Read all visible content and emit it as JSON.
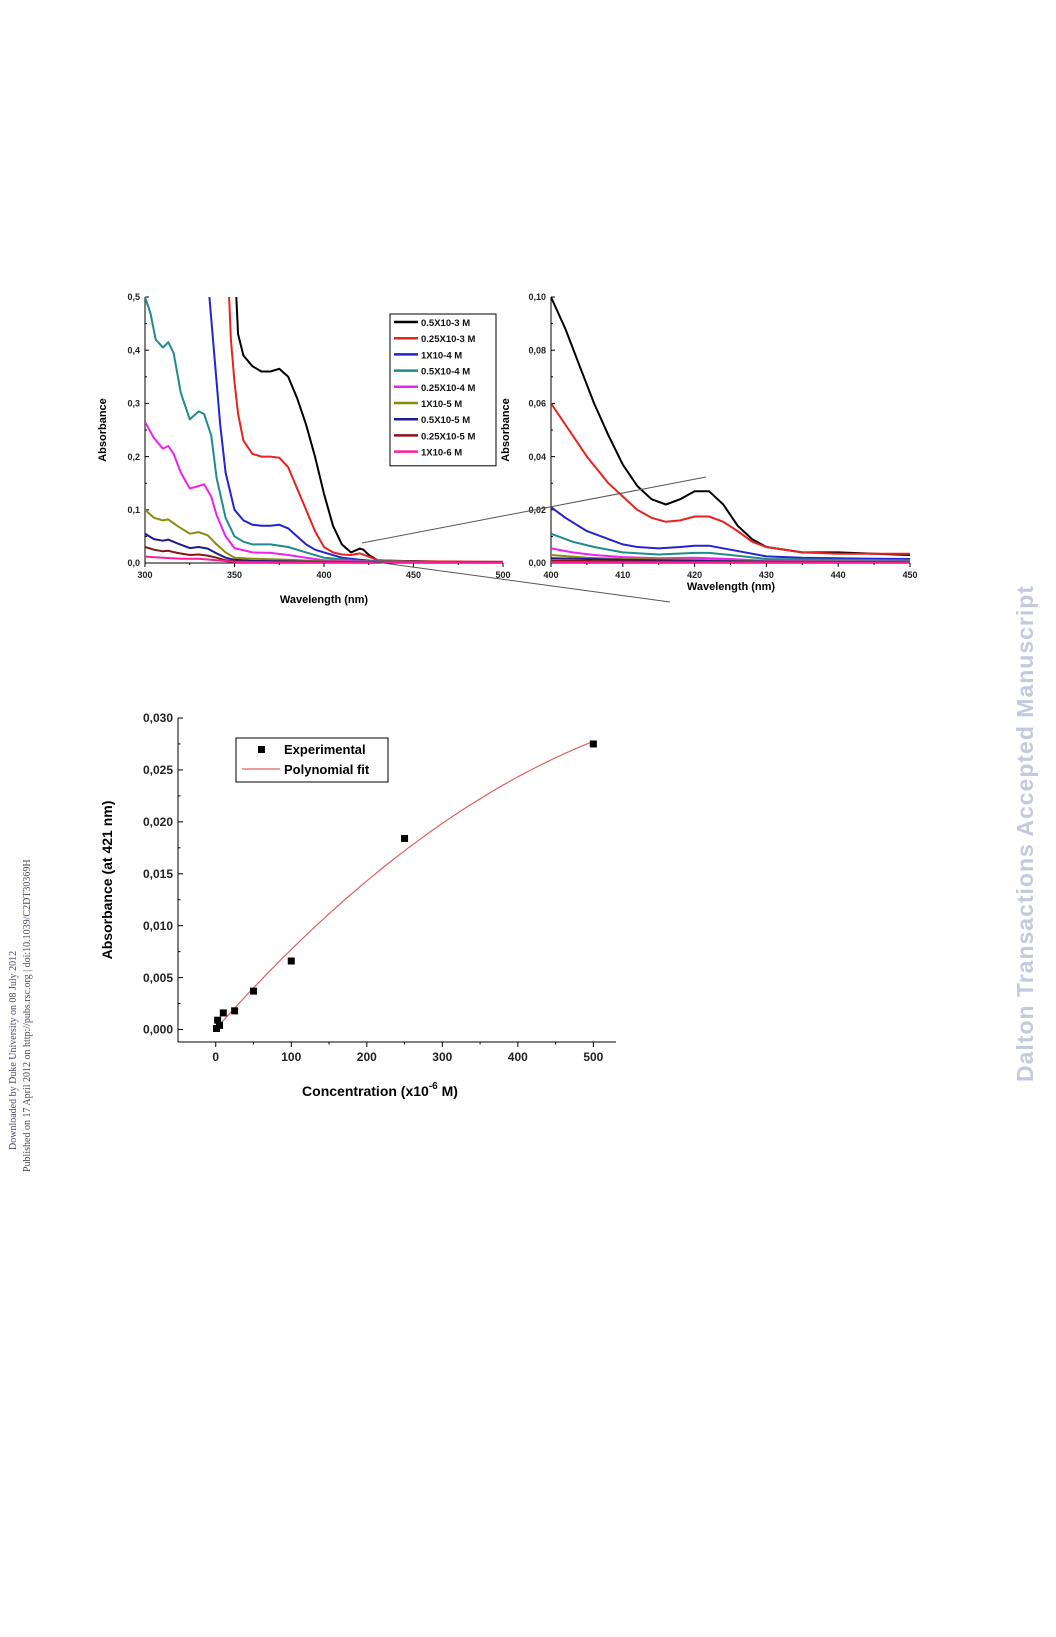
{
  "sidebar": {
    "published_line": "Published on 17 April 2012 on http://pubs.rsc.org | doi:10.1039/C2DT30369H",
    "downloaded_line": "Downloaded by Duke University on 08 July 2012",
    "watermark": "Dalton Transactions Accepted Manuscript"
  },
  "colors": {
    "0.5X10-3 M": "#000000",
    "0.25X10-3 M": "#e8221c",
    "1X10-4 M": "#2323d4",
    "0.5X10-4 M": "#218a8a",
    "0.25X10-4 M": "#ee22ee",
    "1X10-5 M": "#8a8a10",
    "0.5X10-5 M": "#1c1c8a",
    "0.25X10-5 M": "#8a1414",
    "1X10-6 M": "#ff1c9a",
    "fit": "#e06060",
    "zoom_connector": "#555555"
  },
  "chart_data": [
    {
      "type": "line",
      "id": "spectra-main",
      "xlabel": "Wavelength (nm)",
      "ylabel": "Absorbance",
      "xlim": [
        300,
        500
      ],
      "ylim": [
        0,
        0.5
      ],
      "xticks": [
        300,
        350,
        400,
        450,
        500
      ],
      "xtick_labels": [
        "300",
        "350",
        "400",
        "450",
        "500"
      ],
      "yticks": [
        0,
        0.1,
        0.2,
        0.3,
        0.4,
        0.5
      ],
      "ytick_labels": [
        "0,0",
        "0,1",
        "0,2",
        "0,3",
        "0,4",
        "0,5"
      ],
      "legend_placement": "top-right",
      "series": [
        {
          "name": "0.5X10-3 M",
          "x": [
            351,
            352,
            355,
            360,
            365,
            370,
            375,
            380,
            385,
            390,
            395,
            400,
            405,
            410,
            415,
            418,
            420,
            422,
            425,
            430,
            440,
            460,
            480,
            500
          ],
          "y": [
            0.5,
            0.43,
            0.39,
            0.37,
            0.36,
            0.36,
            0.365,
            0.35,
            0.31,
            0.26,
            0.2,
            0.13,
            0.07,
            0.035,
            0.02,
            0.024,
            0.027,
            0.025,
            0.015,
            0.005,
            0.004,
            0.003,
            0.002,
            0.002
          ]
        },
        {
          "name": "0.25X10-3 M",
          "x": [
            347,
            348,
            350,
            352,
            355,
            360,
            365,
            370,
            375,
            380,
            385,
            390,
            395,
            400,
            405,
            410,
            415,
            420,
            425,
            430,
            450,
            500
          ],
          "y": [
            0.5,
            0.42,
            0.34,
            0.28,
            0.23,
            0.205,
            0.2,
            0.2,
            0.198,
            0.18,
            0.14,
            0.1,
            0.06,
            0.03,
            0.02,
            0.016,
            0.015,
            0.018,
            0.012,
            0.005,
            0.003,
            0.002
          ]
        },
        {
          "name": "1X10-4 M",
          "x": [
            336,
            338,
            340,
            342,
            345,
            350,
            355,
            360,
            365,
            370,
            375,
            380,
            385,
            390,
            395,
            400,
            410,
            420,
            430,
            450,
            500
          ],
          "y": [
            0.5,
            0.42,
            0.34,
            0.26,
            0.17,
            0.1,
            0.08,
            0.072,
            0.07,
            0.07,
            0.072,
            0.065,
            0.05,
            0.035,
            0.025,
            0.02,
            0.01,
            0.006,
            0.003,
            0.002,
            0.001
          ]
        },
        {
          "name": "0.5X10-4 M",
          "x": [
            300,
            303,
            306,
            310,
            313,
            316,
            320,
            325,
            330,
            333,
            337,
            340,
            345,
            350,
            355,
            360,
            370,
            380,
            390,
            400,
            420,
            450,
            500
          ],
          "y": [
            0.5,
            0.47,
            0.42,
            0.405,
            0.415,
            0.395,
            0.32,
            0.27,
            0.285,
            0.28,
            0.24,
            0.16,
            0.085,
            0.05,
            0.04,
            0.035,
            0.035,
            0.03,
            0.02,
            0.01,
            0.004,
            0.002,
            0.001
          ]
        },
        {
          "name": "0.25X10-4 M",
          "x": [
            300,
            305,
            310,
            313,
            316,
            320,
            325,
            330,
            333,
            337,
            340,
            345,
            350,
            360,
            370,
            380,
            390,
            400,
            420,
            450,
            500
          ],
          "y": [
            0.265,
            0.235,
            0.215,
            0.22,
            0.205,
            0.17,
            0.14,
            0.145,
            0.148,
            0.125,
            0.09,
            0.05,
            0.028,
            0.02,
            0.019,
            0.015,
            0.01,
            0.005,
            0.003,
            0.001,
            0.001
          ]
        },
        {
          "name": "1X10-5 M",
          "x": [
            300,
            305,
            310,
            313,
            318,
            325,
            330,
            335,
            340,
            345,
            350,
            360,
            380,
            400,
            450,
            500
          ],
          "y": [
            0.1,
            0.085,
            0.08,
            0.082,
            0.07,
            0.055,
            0.058,
            0.052,
            0.035,
            0.02,
            0.01,
            0.008,
            0.006,
            0.003,
            0.001,
            0.001
          ]
        },
        {
          "name": "0.5X10-5 M",
          "x": [
            300,
            305,
            310,
            313,
            318,
            325,
            330,
            335,
            340,
            345,
            350,
            360,
            380,
            400,
            450,
            500
          ],
          "y": [
            0.055,
            0.045,
            0.042,
            0.044,
            0.037,
            0.028,
            0.03,
            0.027,
            0.018,
            0.01,
            0.006,
            0.004,
            0.003,
            0.002,
            0.001,
            0.001
          ]
        },
        {
          "name": "0.25X10-5 M",
          "x": [
            300,
            305,
            310,
            313,
            318,
            325,
            330,
            335,
            340,
            345,
            350,
            360,
            380,
            400,
            450,
            500
          ],
          "y": [
            0.03,
            0.025,
            0.022,
            0.023,
            0.019,
            0.015,
            0.016,
            0.014,
            0.01,
            0.005,
            0.003,
            0.002,
            0.002,
            0.001,
            0.001,
            0.001
          ]
        },
        {
          "name": "1X10-6 M",
          "x": [
            300,
            310,
            320,
            330,
            340,
            350,
            380,
            420,
            500
          ],
          "y": [
            0.012,
            0.01,
            0.008,
            0.008,
            0.005,
            0.002,
            0.001,
            0.001,
            0.0005
          ]
        }
      ]
    },
    {
      "type": "line",
      "id": "spectra-zoom",
      "xlabel": "Wavelength (nm)",
      "ylabel": "Absorbance",
      "xlim": [
        400,
        450
      ],
      "ylim": [
        0,
        0.1
      ],
      "xticks": [
        400,
        410,
        420,
        430,
        440,
        450
      ],
      "xtick_labels": [
        "400",
        "410",
        "420",
        "430",
        "440",
        "450"
      ],
      "yticks": [
        0,
        0.02,
        0.04,
        0.06,
        0.08,
        0.1
      ],
      "ytick_labels": [
        "0,00",
        "0,02",
        "0,04",
        "0,06",
        "0,08",
        "0,10"
      ],
      "series": [
        {
          "name": "0.5X10-3 M",
          "x": [
            400,
            402,
            404,
            406,
            408,
            410,
            412,
            414,
            416,
            418,
            420,
            422,
            424,
            426,
            428,
            430,
            435,
            440,
            445,
            450
          ],
          "y": [
            0.1,
            0.088,
            0.074,
            0.06,
            0.048,
            0.037,
            0.029,
            0.024,
            0.022,
            0.024,
            0.027,
            0.027,
            0.022,
            0.014,
            0.009,
            0.006,
            0.004,
            0.004,
            0.0035,
            0.003
          ]
        },
        {
          "name": "0.25X10-3 M",
          "x": [
            400,
            402,
            405,
            408,
            410,
            412,
            414,
            416,
            418,
            420,
            422,
            424,
            426,
            428,
            430,
            435,
            440,
            445,
            450
          ],
          "y": [
            0.06,
            0.052,
            0.04,
            0.03,
            0.025,
            0.02,
            0.017,
            0.0155,
            0.016,
            0.0175,
            0.0175,
            0.0155,
            0.012,
            0.008,
            0.006,
            0.004,
            0.0035,
            0.0035,
            0.0035
          ]
        },
        {
          "name": "1X10-4 M",
          "x": [
            400,
            402,
            405,
            408,
            410,
            412,
            415,
            418,
            420,
            422,
            425,
            428,
            430,
            435,
            440,
            445,
            450
          ],
          "y": [
            0.021,
            0.017,
            0.012,
            0.009,
            0.007,
            0.006,
            0.0055,
            0.006,
            0.0065,
            0.0065,
            0.005,
            0.0035,
            0.0025,
            0.002,
            0.0018,
            0.0016,
            0.0015
          ]
        },
        {
          "name": "0.5X10-4 M",
          "x": [
            400,
            403,
            406,
            410,
            415,
            420,
            422,
            425,
            430,
            440,
            450
          ],
          "y": [
            0.011,
            0.008,
            0.006,
            0.004,
            0.0032,
            0.0038,
            0.0038,
            0.003,
            0.0015,
            0.0012,
            0.001
          ]
        },
        {
          "name": "0.25X10-4 M",
          "x": [
            400,
            403,
            406,
            410,
            415,
            420,
            425,
            430,
            440,
            450
          ],
          "y": [
            0.0055,
            0.004,
            0.003,
            0.0022,
            0.0018,
            0.002,
            0.0015,
            0.0008,
            0.0006,
            0.0005
          ]
        },
        {
          "name": "1X10-5 M",
          "x": [
            400,
            405,
            410,
            420,
            430,
            450
          ],
          "y": [
            0.003,
            0.002,
            0.0015,
            0.0012,
            0.0006,
            0.0004
          ]
        },
        {
          "name": "0.5X10-5 M",
          "x": [
            400,
            410,
            420,
            430,
            450
          ],
          "y": [
            0.0018,
            0.0012,
            0.0008,
            0.0005,
            0.0003
          ]
        },
        {
          "name": "0.25X10-5 M",
          "x": [
            400,
            410,
            420,
            450
          ],
          "y": [
            0.0009,
            0.0006,
            0.0005,
            0.0002
          ]
        },
        {
          "name": "1X10-6 M",
          "x": [
            400,
            450
          ],
          "y": [
            0.0003,
            0.0001
          ]
        }
      ]
    },
    {
      "type": "scatter",
      "id": "calibration",
      "xlabel": "Concentration (x10",
      "xlabel_sup": "-6",
      "xlabel_suffix": " M)",
      "ylabel": "Absorbance (at 421 nm)",
      "xlim": [
        -50,
        530
      ],
      "ylim": [
        -0.0012,
        0.03
      ],
      "xticks": [
        0,
        100,
        200,
        300,
        400,
        500
      ],
      "xtick_labels": [
        "0",
        "100",
        "200",
        "300",
        "400",
        "500"
      ],
      "yticks": [
        0,
        0.005,
        0.01,
        0.015,
        0.02,
        0.025,
        0.03
      ],
      "ytick_labels": [
        "0,000",
        "0,005",
        "0,010",
        "0,015",
        "0,020",
        "0,025",
        "0,030"
      ],
      "legend_placement": "top-left",
      "series": [
        {
          "name": "Experimental",
          "x": [
            1,
            2.5,
            5,
            10,
            25,
            50,
            100,
            250,
            500
          ],
          "y": [
            0.0001,
            0.0009,
            0.0004,
            0.0016,
            0.0018,
            0.0037,
            0.0066,
            0.0184,
            0.0275
          ]
        },
        {
          "name": "Polynomial fit",
          "fit_coefficients": [
            5e-05,
            8.19e-05,
            -5.3e-08
          ]
        }
      ]
    }
  ]
}
